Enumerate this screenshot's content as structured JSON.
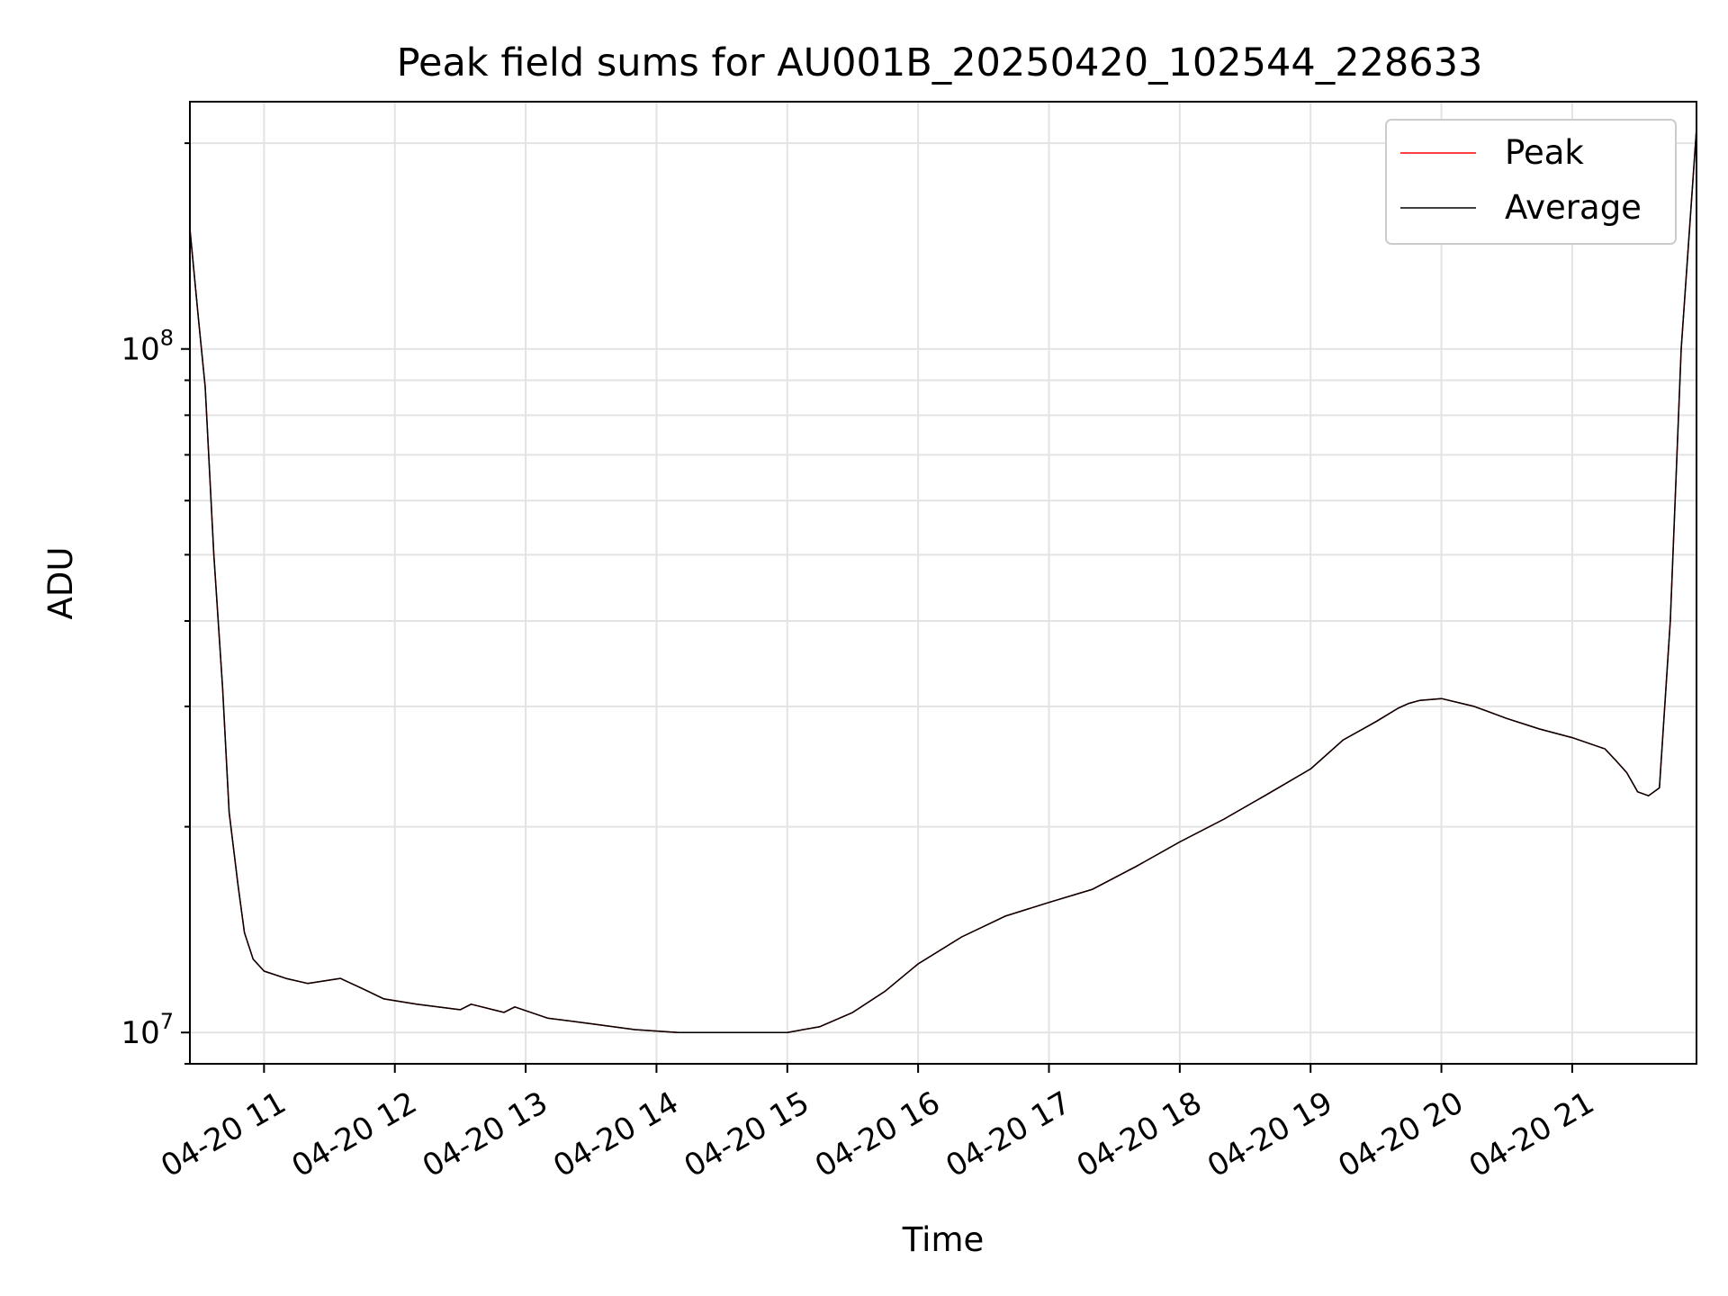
{
  "chart_data": {
    "type": "line",
    "title": "Peak field sums for AU001B_20250420_102544_228633",
    "xlabel": "Time",
    "ylabel": "ADU",
    "y_scale": "log",
    "ylim": [
      9000000,
      230000000
    ],
    "xlim": [
      "2025-04-20 10:26",
      "2025-04-20 21:57"
    ],
    "x_tick_labels": [
      "04-20 11",
      "04-20 12",
      "04-20 13",
      "04-20 14",
      "04-20 15",
      "04-20 16",
      "04-20 17",
      "04-20 18",
      "04-20 19",
      "04-20 20",
      "04-20 21"
    ],
    "y_tick_labels": [
      {
        "value": 10000000,
        "base": "10",
        "exp": "7"
      },
      {
        "value": 100000000,
        "base": "10",
        "exp": "8"
      }
    ],
    "grid": true,
    "legend_position": "top-right",
    "series": [
      {
        "name": "Peak",
        "color": "#ff0000",
        "x": [
          "2025-04-20 10:26",
          "2025-04-20 10:30",
          "2025-04-20 10:33",
          "2025-04-20 10:37",
          "2025-04-20 10:41",
          "2025-04-20 10:44",
          "2025-04-20 10:48",
          "2025-04-20 10:51",
          "2025-04-20 10:55",
          "2025-04-20 11:00",
          "2025-04-20 11:10",
          "2025-04-20 11:20",
          "2025-04-20 11:35",
          "2025-04-20 11:45",
          "2025-04-20 11:55",
          "2025-04-20 12:10",
          "2025-04-20 12:30",
          "2025-04-20 12:35",
          "2025-04-20 12:50",
          "2025-04-20 12:55",
          "2025-04-20 13:10",
          "2025-04-20 13:30",
          "2025-04-20 13:50",
          "2025-04-20 14:10",
          "2025-04-20 14:30",
          "2025-04-20 14:45",
          "2025-04-20 15:00",
          "2025-04-20 15:15",
          "2025-04-20 15:30",
          "2025-04-20 15:45",
          "2025-04-20 16:00",
          "2025-04-20 16:20",
          "2025-04-20 16:40",
          "2025-04-20 17:00",
          "2025-04-20 17:20",
          "2025-04-20 17:40",
          "2025-04-20 18:00",
          "2025-04-20 18:20",
          "2025-04-20 18:40",
          "2025-04-20 19:00",
          "2025-04-20 19:15",
          "2025-04-20 19:30",
          "2025-04-20 19:40",
          "2025-04-20 19:45",
          "2025-04-20 19:50",
          "2025-04-20 20:00",
          "2025-04-20 20:15",
          "2025-04-20 20:30",
          "2025-04-20 20:45",
          "2025-04-20 21:00",
          "2025-04-20 21:15",
          "2025-04-20 21:20",
          "2025-04-20 21:25",
          "2025-04-20 21:30",
          "2025-04-20 21:35",
          "2025-04-20 21:40",
          "2025-04-20 21:45",
          "2025-04-20 21:50",
          "2025-04-20 21:57"
        ],
        "y": [
          150000000,
          110000000,
          88000000,
          50000000,
          32000000,
          21000000,
          16500000,
          14000000,
          12800000,
          12300000,
          12000000,
          11800000,
          12000000,
          11600000,
          11200000,
          11000000,
          10800000,
          11000000,
          10700000,
          10900000,
          10500000,
          10300000,
          10100000,
          10000000,
          10000000,
          10000000,
          10000000,
          10200000,
          10700000,
          11500000,
          12600000,
          13800000,
          14800000,
          15500000,
          16200000,
          17500000,
          19000000,
          20500000,
          22300000,
          24300000,
          26800000,
          28500000,
          29800000,
          30300000,
          30600000,
          30800000,
          30000000,
          28800000,
          27800000,
          27000000,
          26000000,
          25000000,
          24000000,
          22500000,
          22200000,
          22800000,
          40000000,
          100000000,
          210000000
        ]
      },
      {
        "name": "Average",
        "color": "#000000",
        "x": [
          "2025-04-20 10:26",
          "2025-04-20 10:30",
          "2025-04-20 10:33",
          "2025-04-20 10:37",
          "2025-04-20 10:41",
          "2025-04-20 10:44",
          "2025-04-20 10:48",
          "2025-04-20 10:51",
          "2025-04-20 10:55",
          "2025-04-20 11:00",
          "2025-04-20 11:10",
          "2025-04-20 11:20",
          "2025-04-20 11:35",
          "2025-04-20 11:45",
          "2025-04-20 11:55",
          "2025-04-20 12:10",
          "2025-04-20 12:30",
          "2025-04-20 12:35",
          "2025-04-20 12:50",
          "2025-04-20 12:55",
          "2025-04-20 13:10",
          "2025-04-20 13:30",
          "2025-04-20 13:50",
          "2025-04-20 14:10",
          "2025-04-20 14:30",
          "2025-04-20 14:45",
          "2025-04-20 15:00",
          "2025-04-20 15:15",
          "2025-04-20 15:30",
          "2025-04-20 15:45",
          "2025-04-20 16:00",
          "2025-04-20 16:20",
          "2025-04-20 16:40",
          "2025-04-20 17:00",
          "2025-04-20 17:20",
          "2025-04-20 17:40",
          "2025-04-20 18:00",
          "2025-04-20 18:20",
          "2025-04-20 18:40",
          "2025-04-20 19:00",
          "2025-04-20 19:15",
          "2025-04-20 19:30",
          "2025-04-20 19:40",
          "2025-04-20 19:45",
          "2025-04-20 19:50",
          "2025-04-20 20:00",
          "2025-04-20 20:15",
          "2025-04-20 20:30",
          "2025-04-20 20:45",
          "2025-04-20 21:00",
          "2025-04-20 21:15",
          "2025-04-20 21:20",
          "2025-04-20 21:25",
          "2025-04-20 21:30",
          "2025-04-20 21:35",
          "2025-04-20 21:40",
          "2025-04-20 21:45",
          "2025-04-20 21:50",
          "2025-04-20 21:57"
        ],
        "y": [
          150000000,
          110000000,
          88000000,
          50000000,
          32000000,
          21000000,
          16500000,
          14000000,
          12800000,
          12300000,
          12000000,
          11800000,
          12000000,
          11600000,
          11200000,
          11000000,
          10800000,
          11000000,
          10700000,
          10900000,
          10500000,
          10300000,
          10100000,
          10000000,
          10000000,
          10000000,
          10000000,
          10200000,
          10700000,
          11500000,
          12600000,
          13800000,
          14800000,
          15500000,
          16200000,
          17500000,
          19000000,
          20500000,
          22300000,
          24300000,
          26800000,
          28500000,
          29800000,
          30300000,
          30600000,
          30800000,
          30000000,
          28800000,
          27800000,
          27000000,
          26000000,
          25000000,
          24000000,
          22500000,
          22200000,
          22800000,
          40000000,
          100000000,
          210000000
        ]
      }
    ]
  }
}
